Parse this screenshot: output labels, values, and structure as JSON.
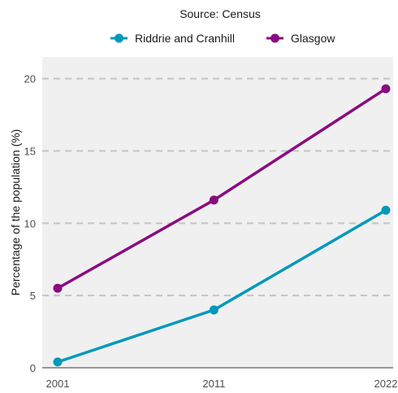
{
  "chart_data": {
    "type": "line",
    "subtitle": "Source: Census",
    "x": [
      "2001",
      "2011",
      "2022"
    ],
    "x_numeric": [
      2001,
      2011,
      2022
    ],
    "xlim": [
      2001,
      2022
    ],
    "ylabel": "Percentage of the population (%)",
    "ylim": [
      0,
      21.5
    ],
    "yticks": [
      0,
      5,
      10,
      15,
      20
    ],
    "grid": "horizontal dashed",
    "legend_position": "top",
    "series": [
      {
        "name": "Riddrie and Cranhill",
        "color": "#0099bb",
        "values": [
          0.4,
          4.0,
          10.9
        ]
      },
      {
        "name": "Glasgow",
        "color": "#8b0a82",
        "values": [
          5.5,
          11.6,
          19.3
        ]
      }
    ]
  }
}
